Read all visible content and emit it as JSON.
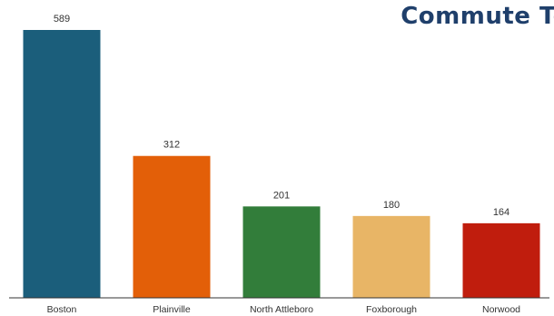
{
  "chart_data": {
    "type": "bar",
    "title": "Commute To:",
    "categories": [
      "Boston",
      "Plainville",
      "North Attleboro",
      "Foxborough",
      "Norwood"
    ],
    "values": [
      589,
      312,
      201,
      180,
      164
    ],
    "colors": [
      "#1b5e7b",
      "#e35f08",
      "#327d3a",
      "#e8b566",
      "#c01d0d"
    ],
    "ylim": [
      0,
      589
    ],
    "grid": false,
    "legend": "none"
  }
}
